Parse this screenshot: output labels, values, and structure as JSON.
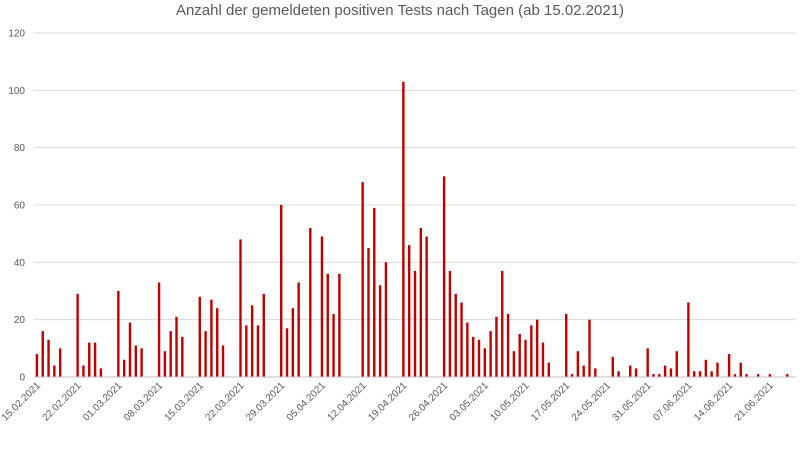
{
  "chart_data": {
    "type": "bar",
    "title": "Anzahl der gemeldeten positiven Tests nach Tagen (ab 15.02.2021)",
    "xlabel": "",
    "ylabel": "",
    "ylim": [
      0,
      120
    ],
    "yticks": [
      0,
      20,
      40,
      60,
      80,
      100,
      120
    ],
    "grid": true,
    "bar_color": "#c00000",
    "xtick_labels": [
      "15.02.2021",
      "22.02.2021",
      "01.03.2021",
      "08.03.2021",
      "15.03.2021",
      "22.03.2021",
      "29.03.2021",
      "05.04.2021",
      "12.04.2021",
      "19.04.2021",
      "26.04.2021",
      "03.05.2021",
      "10.05.2021",
      "17.05.2021",
      "24.05.2021",
      "31.05.2021",
      "07.06.2021",
      "14.06.2021",
      "21.06.2021"
    ],
    "values": [
      8,
      16,
      13,
      4,
      10,
      0,
      0,
      29,
      4,
      12,
      12,
      3,
      0,
      0,
      30,
      6,
      19,
      11,
      10,
      0,
      0,
      33,
      9,
      16,
      21,
      14,
      0,
      0,
      28,
      16,
      27,
      24,
      11,
      0,
      0,
      48,
      18,
      25,
      18,
      29,
      0,
      0,
      60,
      17,
      24,
      33,
      0,
      52,
      0,
      49,
      36,
      22,
      36,
      0,
      0,
      0,
      68,
      45,
      59,
      32,
      40,
      0,
      0,
      103,
      46,
      37,
      52,
      49,
      0,
      0,
      70,
      37,
      29,
      26,
      19,
      14,
      13,
      10,
      16,
      21,
      37,
      22,
      9,
      15,
      13,
      18,
      20,
      12,
      5,
      0,
      0,
      22,
      1,
      9,
      4,
      20,
      3,
      0,
      0,
      7,
      2,
      0,
      4,
      3,
      0,
      10,
      1,
      1,
      4,
      3,
      9,
      0,
      26,
      2,
      2,
      6,
      2,
      5,
      0,
      8,
      1,
      5,
      1,
      0,
      1,
      0,
      1,
      0,
      0,
      1,
      0
    ]
  }
}
